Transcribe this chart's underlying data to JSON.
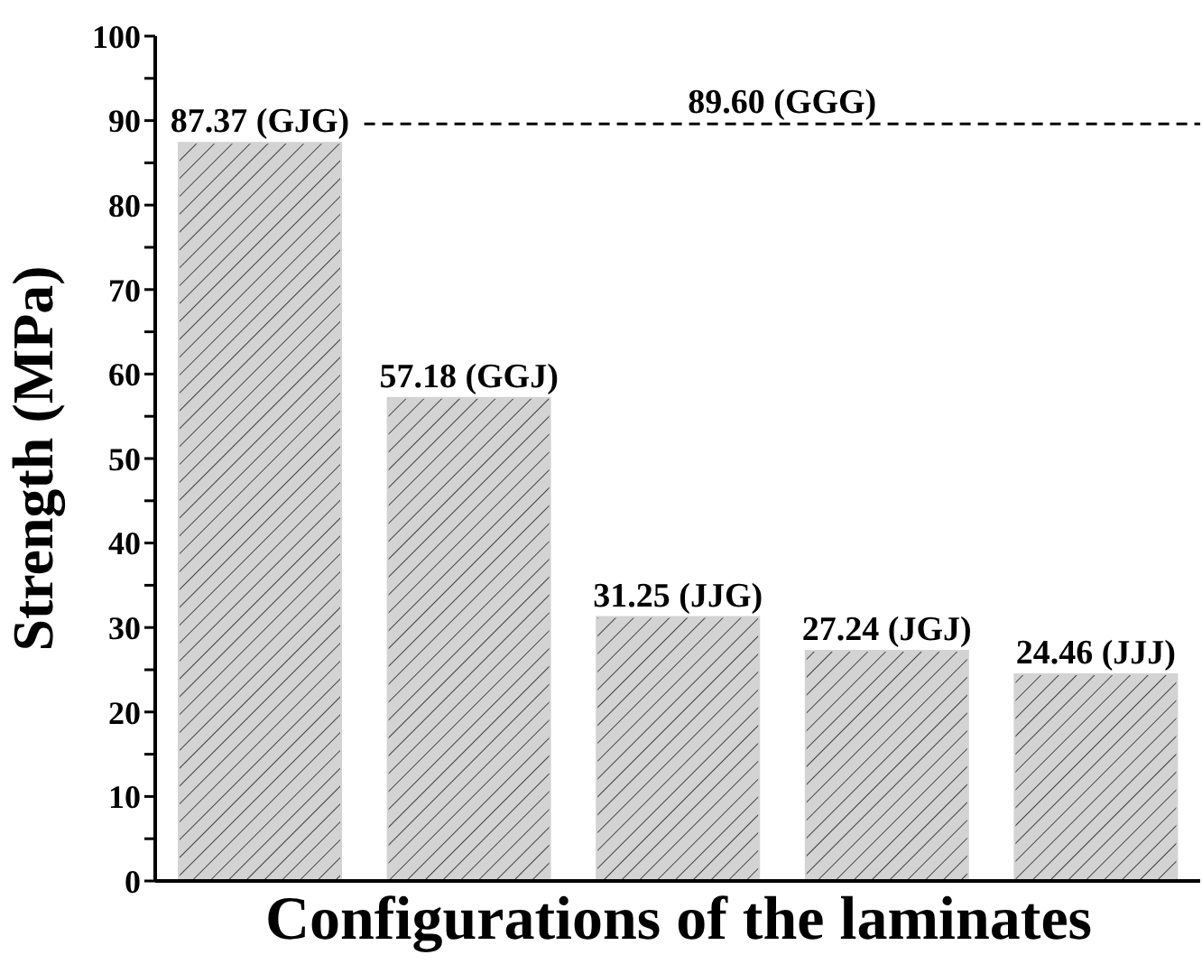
{
  "chart_data": {
    "type": "bar",
    "xlabel": "Configurations of the laminates",
    "ylabel": "Strength (MPa)",
    "categories": [
      null,
      null,
      null,
      null,
      null
    ],
    "values": [
      87.37,
      57.18,
      31.25,
      27.24,
      24.46
    ],
    "value_labels": [
      "87.37 (GJG)",
      "57.18 (GGJ)",
      "31.25 (JJG)",
      "27.24 (JGJ)",
      "24.46 (JJJ)"
    ],
    "color": "#d3d3d3",
    "ylim": [
      0,
      100
    ],
    "yticks": [
      0,
      {
        "value": 5,
        "label": null
      },
      10,
      {
        "value": 15,
        "label": null
      },
      20,
      {
        "value": 25,
        "label": null
      },
      30,
      {
        "value": 35,
        "label": null
      },
      40,
      {
        "value": 45,
        "label": null
      },
      50,
      {
        "value": 55,
        "label": null
      },
      60,
      {
        "value": 65,
        "label": null
      },
      70,
      {
        "value": 75,
        "label": null
      },
      80,
      {
        "value": 85,
        "label": null
      },
      90,
      {
        "value": 95,
        "label": null
      },
      100
    ],
    "ref_lines": [
      {
        "axis": "y",
        "value": 89.6,
        "label": "89.60 (GGG)",
        "line_style": "dashed",
        "color": "#000000"
      }
    ],
    "grid": false
  }
}
